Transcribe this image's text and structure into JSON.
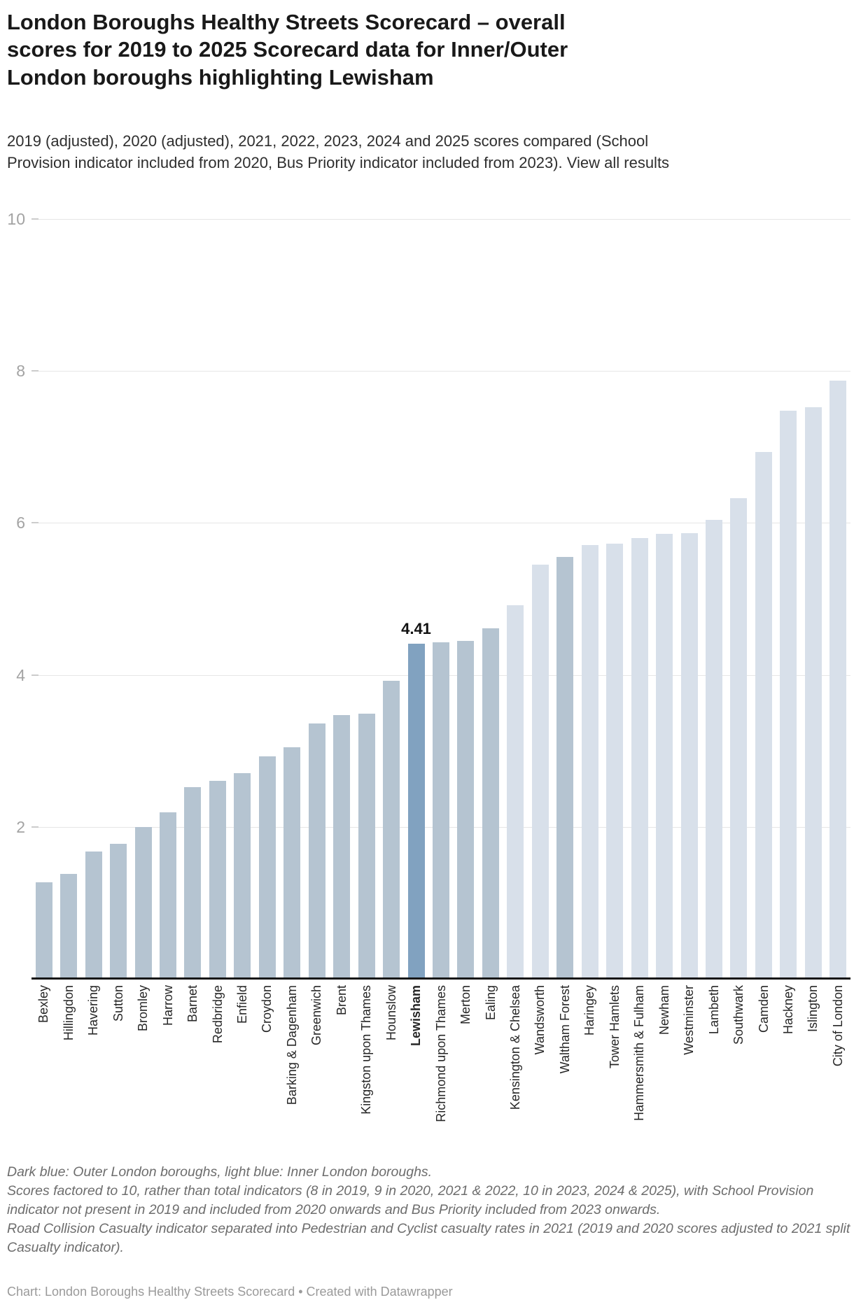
{
  "header": {
    "title": "London Boroughs Healthy Streets Scorecard – overall\nscores for 2019 to 2025 Scorecard data for Inner/Outer\nLondon boroughs highlighting Lewisham",
    "subtitle": "2019 (adjusted), 2020 (adjusted), 2021, 2022, 2023, 2024 and 2025 scores compared (School Provision indicator included from 2020, Bus Priority indicator included from 2023). ",
    "view_all_link": "View all results"
  },
  "chart_data": {
    "type": "bar",
    "title": "London Boroughs Healthy Streets Scorecard – overall scores for 2019 to 2025 Scorecard data for Inner/Outer London boroughs highlighting Lewisham",
    "xlabel": "",
    "ylabel": "",
    "ylim": [
      0,
      10
    ],
    "y_ticks": [
      10,
      8,
      6,
      4,
      2
    ],
    "grid": "horizontal",
    "legend_note": "Dark blue: Outer London boroughs, light blue: Inner London boroughs.",
    "highlight_annotation": {
      "category": "Lewisham",
      "text": "4.41"
    },
    "colors": {
      "outer": "#b5c4d1",
      "inner": "#d8e0ea",
      "lewisham": "#81a2c0"
    },
    "boroughs": [
      {
        "name": "Bexley",
        "value": 1.27,
        "group": "outer"
      },
      {
        "name": "Hillingdon",
        "value": 1.38,
        "group": "outer"
      },
      {
        "name": "Havering",
        "value": 1.68,
        "group": "outer"
      },
      {
        "name": "Sutton",
        "value": 1.78,
        "group": "outer"
      },
      {
        "name": "Bromley",
        "value": 2.0,
        "group": "outer"
      },
      {
        "name": "Harrow",
        "value": 2.19,
        "group": "outer"
      },
      {
        "name": "Barnet",
        "value": 2.52,
        "group": "outer"
      },
      {
        "name": "Redbridge",
        "value": 2.61,
        "group": "outer"
      },
      {
        "name": "Enfield",
        "value": 2.71,
        "group": "outer"
      },
      {
        "name": "Croydon",
        "value": 2.93,
        "group": "outer"
      },
      {
        "name": "Barking & Dagenham",
        "value": 3.05,
        "group": "outer"
      },
      {
        "name": "Greenwich",
        "value": 3.36,
        "group": "outer"
      },
      {
        "name": "Brent",
        "value": 3.47,
        "group": "outer"
      },
      {
        "name": "Kingston upon Thames",
        "value": 3.49,
        "group": "outer"
      },
      {
        "name": "Hounslow",
        "value": 3.92,
        "group": "outer"
      },
      {
        "name": "Lewisham",
        "value": 4.41,
        "group": "lewisham"
      },
      {
        "name": "Richmond upon Thames",
        "value": 4.43,
        "group": "outer"
      },
      {
        "name": "Merton",
        "value": 4.45,
        "group": "outer"
      },
      {
        "name": "Ealing",
        "value": 4.61,
        "group": "outer"
      },
      {
        "name": "Kensington & Chelsea",
        "value": 4.92,
        "group": "inner"
      },
      {
        "name": "Wandsworth",
        "value": 5.45,
        "group": "inner"
      },
      {
        "name": "Waltham Forest",
        "value": 5.55,
        "group": "outer"
      },
      {
        "name": "Haringey",
        "value": 5.71,
        "group": "inner"
      },
      {
        "name": "Tower Hamlets",
        "value": 5.73,
        "group": "inner"
      },
      {
        "name": "Hammersmith & Fulham",
        "value": 5.8,
        "group": "inner"
      },
      {
        "name": "Newham",
        "value": 5.86,
        "group": "inner"
      },
      {
        "name": "Westminster",
        "value": 5.87,
        "group": "inner"
      },
      {
        "name": "Lambeth",
        "value": 6.04,
        "group": "inner"
      },
      {
        "name": "Southwark",
        "value": 6.33,
        "group": "inner"
      },
      {
        "name": "Camden",
        "value": 6.93,
        "group": "inner"
      },
      {
        "name": "Hackney",
        "value": 7.48,
        "group": "inner"
      },
      {
        "name": "Islington",
        "value": 7.52,
        "group": "inner"
      },
      {
        "name": "City of London",
        "value": 7.87,
        "group": "inner"
      }
    ]
  },
  "footer": {
    "note1": "Dark blue: Outer London boroughs, light blue: Inner London boroughs.",
    "note2": "Scores factored to 10, rather than total indicators (8 in 2019, 9 in 2020, 2021 & 2022, 10 in 2023, 2024 & 2025), with School Provision indicator not present in 2019 and included from 2020 onwards and Bus Priority included from 2023 onwards.",
    "note3": "Road Collision Casualty indicator separated into Pedestrian and Cyclist casualty rates in 2021 (2019 and 2020 scores adjusted to 2021 split Casualty indicator).",
    "credit": "Chart: London Boroughs Healthy Streets Scorecard • Created with Datawrapper"
  }
}
